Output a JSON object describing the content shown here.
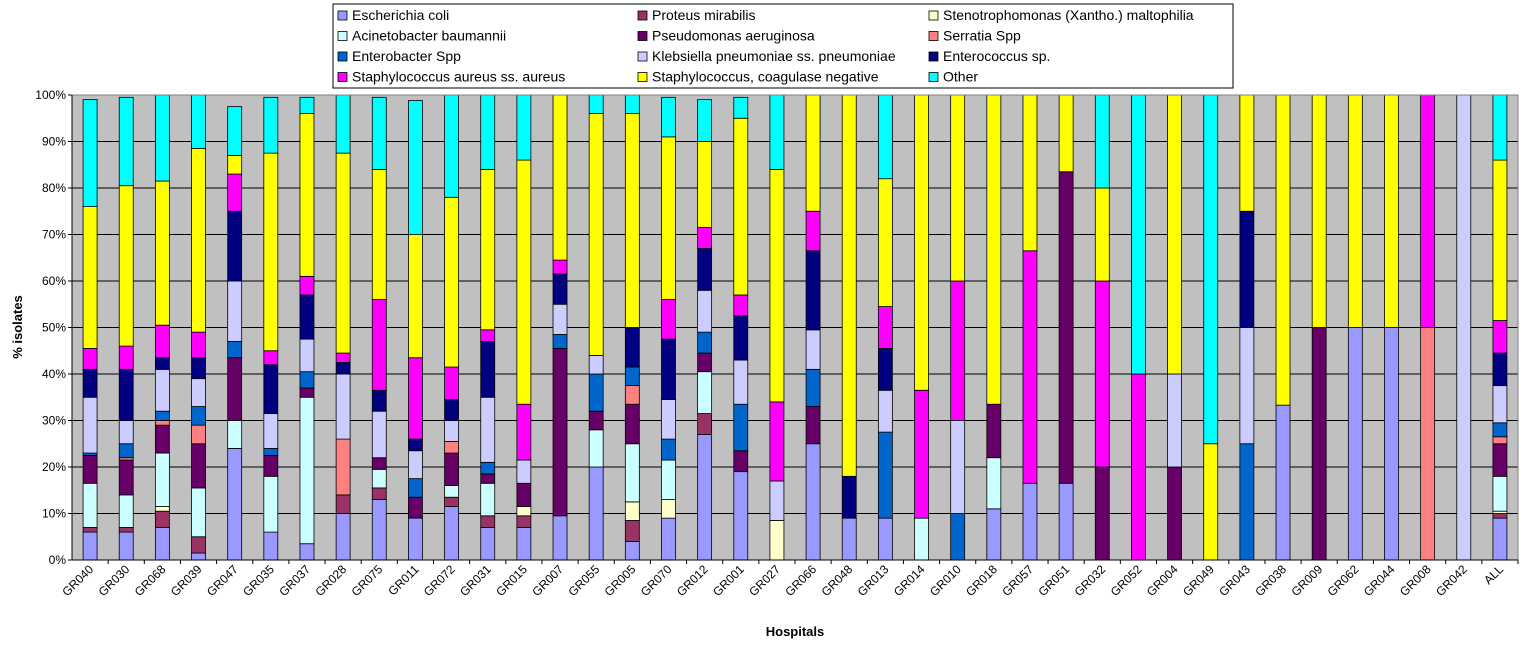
{
  "chart_data": {
    "type": "bar",
    "stacked": true,
    "normalized_percent": true,
    "title": "",
    "xlabel": "Hospitals",
    "ylabel": "% isolates",
    "ylim": [
      0,
      100
    ],
    "yticks": [
      "0%",
      "10%",
      "20%",
      "30%",
      "40%",
      "50%",
      "60%",
      "70%",
      "80%",
      "90%",
      "100%"
    ],
    "grid": true,
    "legend_position": "top",
    "plot_background": "#C0C0C0",
    "categories": [
      "GR040",
      "GR030",
      "GR068",
      "GR039",
      "GR047",
      "GR035",
      "GR037",
      "GR028",
      "GR075",
      "GR011",
      "GR072",
      "GR031",
      "GR015",
      "GR007",
      "GR055",
      "GR005",
      "GR070",
      "GR012",
      "GR001",
      "GR027",
      "GR066",
      "GR048",
      "GR013",
      "GR014",
      "GR010",
      "GR018",
      "GR057",
      "GR051",
      "GR032",
      "GR052",
      "GR004",
      "GR049",
      "GR043",
      "GR038",
      "GR009",
      "GR062",
      "GR044",
      "GR008",
      "GR042",
      "ALL"
    ],
    "series": [
      {
        "name": "Escherichia coli",
        "color": "#9999FF",
        "values": [
          6.0,
          6.0,
          7.0,
          1.5,
          24.0,
          6.0,
          3.5,
          10.0,
          13.0,
          9.0,
          11.5,
          7.0,
          7.0,
          9.5,
          20.0,
          4.0,
          9.0,
          27.0,
          19.0,
          0,
          25.0,
          9.0,
          9.0,
          0,
          0,
          11.0,
          16.5,
          16.5,
          0,
          0,
          0,
          0,
          0,
          33.3,
          0,
          50.0,
          50.0,
          0,
          0,
          9.0
        ]
      },
      {
        "name": "Proteus mirabilis",
        "color": "#993366",
        "values": [
          1.0,
          1.0,
          3.5,
          3.5,
          0,
          0,
          0,
          4.0,
          2.5,
          0,
          2.0,
          2.5,
          2.5,
          0,
          0,
          4.5,
          0,
          4.5,
          0,
          0,
          0,
          0,
          0,
          0,
          0,
          0,
          0,
          0,
          0,
          0,
          0,
          0,
          0,
          0,
          0,
          0,
          0,
          0,
          0,
          1.0
        ]
      },
      {
        "name": "Stenotrophomonas (Xantho.) maltophilia",
        "color": "#FFFFCC",
        "values": [
          0,
          0,
          1.0,
          0,
          0,
          0,
          0,
          0,
          0,
          0,
          0,
          0,
          2.0,
          0,
          0,
          4.0,
          4.0,
          0,
          0,
          8.5,
          0,
          0,
          0,
          0,
          0,
          0,
          0,
          0,
          0,
          0,
          0,
          0,
          0,
          0,
          0,
          0,
          0,
          0,
          0,
          0.5
        ]
      },
      {
        "name": "Acinetobacter baumannii",
        "color": "#CCFFFF",
        "values": [
          9.5,
          7.0,
          11.5,
          10.5,
          6.0,
          12.0,
          31.5,
          0,
          4.0,
          0,
          2.5,
          7.0,
          0,
          0,
          8.0,
          12.5,
          8.5,
          9.0,
          0,
          0,
          0,
          0,
          0,
          9.0,
          0,
          11.0,
          0,
          0,
          0,
          0,
          0,
          0,
          0,
          0,
          0,
          0,
          0,
          0,
          0,
          7.5
        ]
      },
      {
        "name": "Pseudomonas aeruginosa",
        "color": "#660066",
        "values": [
          6.0,
          7.5,
          6.0,
          9.5,
          13.5,
          4.5,
          2.0,
          0,
          2.5,
          4.5,
          7.0,
          2.0,
          5.0,
          36.0,
          4.0,
          8.5,
          0,
          4.0,
          4.5,
          0,
          8.0,
          0,
          0,
          0,
          0,
          11.5,
          0,
          67.0,
          20.0,
          0,
          20.0,
          0,
          0,
          0,
          50.0,
          0,
          0,
          0,
          0,
          7.0
        ]
      },
      {
        "name": "Serratia Spp",
        "color": "#FF8080",
        "values": [
          0,
          0.5,
          1.0,
          4.0,
          0,
          0,
          0,
          12.0,
          0,
          0,
          2.5,
          0,
          0,
          0,
          0,
          4.0,
          0,
          0,
          0,
          0,
          0,
          0,
          0,
          0,
          0,
          0,
          0,
          0,
          0,
          0,
          0,
          0,
          0,
          0,
          0,
          0,
          0,
          50.0,
          0,
          1.5
        ]
      },
      {
        "name": "Enterobacter Spp",
        "color": "#0066CC",
        "values": [
          0.5,
          3.0,
          2.0,
          4.0,
          3.5,
          1.5,
          3.5,
          0,
          0,
          4.0,
          0,
          2.5,
          0,
          3.0,
          8.0,
          4.0,
          4.5,
          4.5,
          10.0,
          0,
          8.0,
          0,
          18.5,
          0,
          10.0,
          0,
          0,
          0,
          0,
          0,
          0,
          0,
          25.0,
          0,
          0,
          0,
          0,
          0,
          0,
          3.0
        ]
      },
      {
        "name": "Klebsiella pneumoniae ss. pneumoniae",
        "color": "#CCCCFF",
        "values": [
          12.0,
          5.0,
          9.0,
          6.0,
          13.0,
          7.5,
          7.0,
          14.0,
          10.0,
          6.0,
          4.5,
          14.0,
          5.0,
          6.5,
          4.0,
          0,
          8.5,
          9.0,
          9.5,
          8.5,
          8.5,
          0,
          9.0,
          0,
          20.0,
          0,
          0,
          0,
          0,
          0,
          20.0,
          0,
          25.0,
          0,
          0,
          0,
          0,
          0,
          100.0,
          8.0
        ]
      },
      {
        "name": "Enterococcus sp.",
        "color": "#000080",
        "values": [
          6.0,
          11.0,
          2.5,
          4.5,
          15.0,
          10.5,
          9.5,
          2.5,
          4.5,
          2.5,
          4.5,
          12.0,
          0,
          6.5,
          0,
          8.5,
          13.0,
          9.0,
          9.5,
          0,
          17.0,
          9.0,
          9.0,
          0,
          0,
          0,
          0,
          0,
          0,
          0,
          0,
          0,
          25.0,
          0,
          0,
          0,
          0,
          0,
          0,
          7.0
        ]
      },
      {
        "name": "Staphylococcus aureus ss. aureus",
        "color": "#FF00FF",
        "values": [
          4.5,
          5.0,
          7.0,
          5.5,
          8.0,
          3.0,
          4.0,
          2.0,
          19.5,
          17.5,
          7.0,
          2.5,
          12.0,
          3.0,
          0,
          0,
          8.5,
          4.5,
          4.5,
          17.0,
          8.5,
          0,
          9.0,
          27.5,
          30.0,
          0,
          50.0,
          0,
          40.0,
          40.0,
          0,
          0,
          0,
          0,
          0,
          0,
          0,
          50.0,
          0,
          7.0
        ]
      },
      {
        "name": "Staphylococcus, coagulase negative",
        "color": "#FFFF00",
        "values": [
          30.5,
          34.5,
          31.0,
          39.5,
          4.0,
          42.5,
          35.0,
          43.0,
          28.0,
          26.5,
          36.5,
          34.5,
          52.5,
          35.5,
          52.0,
          46.0,
          35.0,
          18.5,
          38.0,
          50.0,
          25.0,
          82.0,
          27.5,
          63.5,
          40.0,
          66.5,
          33.5,
          16.5,
          20.0,
          0,
          60.0,
          25.0,
          25.0,
          66.7,
          50.0,
          50.0,
          50.0,
          0,
          0,
          34.5
        ]
      },
      {
        "name": "Other",
        "color": "#00FFFF",
        "values": [
          23.0,
          19.0,
          18.5,
          11.5,
          10.5,
          12.0,
          3.5,
          12.5,
          15.5,
          28.8,
          22.5,
          16.3,
          14.2,
          0,
          4.0,
          4.0,
          8.5,
          9.0,
          4.5,
          16.5,
          0,
          0,
          18.0,
          0,
          0,
          0,
          0,
          0,
          20.0,
          60.0,
          0,
          75.0,
          0,
          0,
          0,
          0,
          0,
          0,
          0,
          14.5
        ]
      }
    ]
  }
}
